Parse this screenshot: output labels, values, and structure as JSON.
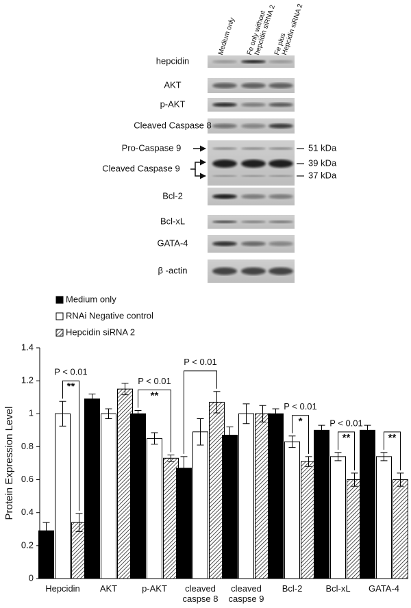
{
  "blot": {
    "lanes": [
      [
        "Medium only"
      ],
      [
        "Fe only without",
        "hepcidin siRNA 2"
      ],
      [
        "Fe plus",
        "Hepcidin siRNA 2"
      ]
    ],
    "rows": [
      "hepcidin",
      "AKT",
      "p-AKT",
      "Cleaved  Caspase 8",
      "Bcl-2",
      "Bcl-xL",
      "GATA-4",
      "β -actin"
    ],
    "caspase9": {
      "labels": [
        "Pro-Caspase 9",
        "Cleaved Caspase 9"
      ],
      "markers": [
        "51 kDa",
        "39 kDa",
        "37 kDa"
      ]
    }
  },
  "chart_data": {
    "type": "bar",
    "y_label": "Protein Expression Level",
    "categories": [
      "Hepcidin",
      "AKT",
      "p-AKT",
      "cleaved caspse 8",
      "cleaved caspse 9",
      "Bcl-2",
      "Bcl-xL",
      "GATA-4"
    ],
    "series": [
      {
        "name": "Medium only",
        "color": "#000000",
        "fill": "solid",
        "values": [
          0.29,
          1.09,
          1.0,
          0.67,
          0.87,
          1.0,
          0.9,
          0.9
        ],
        "errors": [
          0.05,
          0.03,
          0.02,
          0.07,
          0.05,
          0.03,
          0.03,
          0.03
        ]
      },
      {
        "name": "RNAi Negative control",
        "color": "#ffffff",
        "fill": "solid",
        "values": [
          1.0,
          1.0,
          0.85,
          0.89,
          1.0,
          0.83,
          0.74,
          0.74
        ],
        "errors": [
          0.075,
          0.03,
          0.035,
          0.08,
          0.06,
          0.035,
          0.025,
          0.025
        ]
      },
      {
        "name": "Hepcidin siRNA 2",
        "color": "#ffffff",
        "fill": "hatch",
        "values": [
          0.34,
          1.15,
          0.73,
          1.07,
          1.0,
          0.71,
          0.6,
          0.6
        ],
        "errors": [
          0.055,
          0.035,
          0.02,
          0.065,
          0.05,
          0.03,
          0.04,
          0.04
        ]
      }
    ],
    "ylim": [
      0,
      1.4
    ],
    "yticks": [
      0,
      0.2,
      0.4,
      0.6,
      0.8,
      1,
      1.2,
      1.4
    ],
    "legend": "top-left",
    "annotations": [
      {
        "category": "Hepcidin",
        "between": [
          "RNAi Negative control",
          "Hepcidin siRNA 2"
        ],
        "text": "P < 0.01",
        "stars": "**"
      },
      {
        "category": "p-AKT",
        "between": [
          "Medium only",
          "Hepcidin siRNA 2"
        ],
        "text": "P < 0.01",
        "stars": "**"
      },
      {
        "category": "cleaved caspse 8",
        "between": [
          "Medium only",
          "Hepcidin siRNA 2"
        ],
        "text": "P < 0.01"
      },
      {
        "category": "Bcl-2",
        "between": [
          "RNAi Negative control",
          "Hepcidin siRNA 2"
        ],
        "text": "P < 0.01",
        "stars": "*"
      },
      {
        "category": "Bcl-xL",
        "between": [
          "RNAi Negative control",
          "Hepcidin siRNA 2"
        ],
        "text": "P < 0.01",
        "stars": "**"
      },
      {
        "category": "GATA-4",
        "between": [
          "RNAi Negative control",
          "Hepcidin siRNA 2"
        ],
        "stars": "**"
      }
    ]
  }
}
